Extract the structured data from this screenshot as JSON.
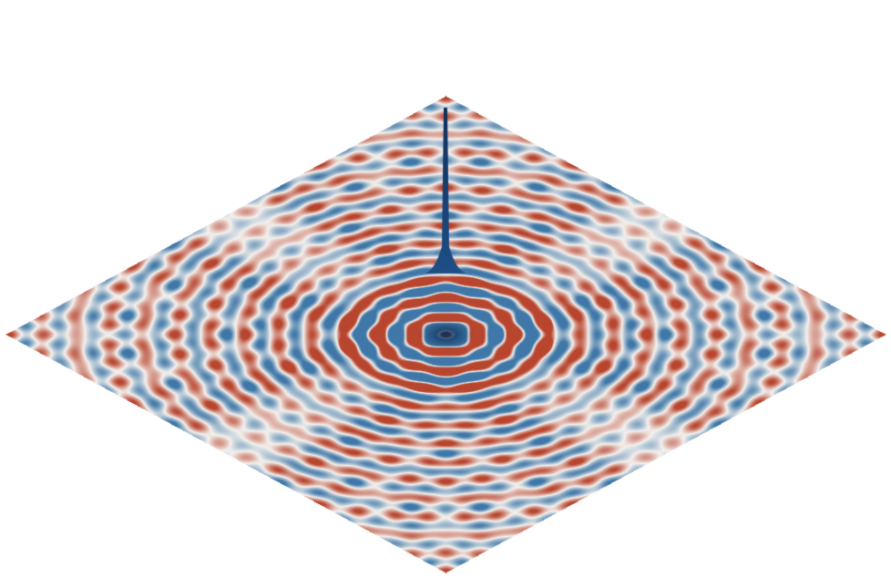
{
  "scene": {
    "type": "3d-surface-render",
    "subject": "wave-interference-ripples",
    "colors": {
      "background": "#ffffff",
      "positive": "#b8462f",
      "negative": "#3f78a8",
      "neutral": "#f4f1ee",
      "spike": "#0f2f5c"
    }
  }
}
